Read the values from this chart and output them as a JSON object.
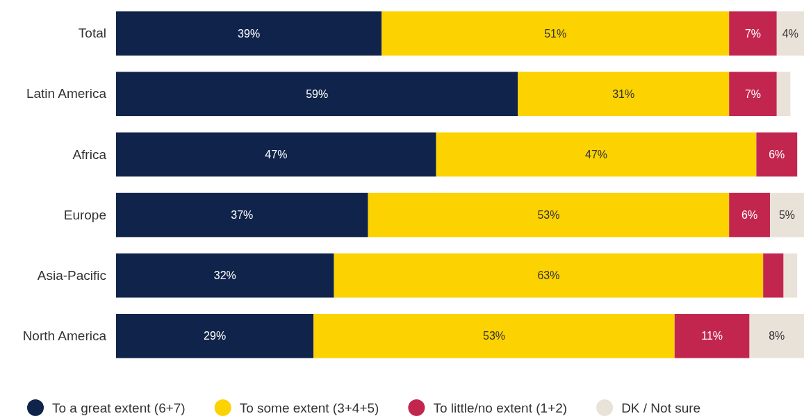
{
  "chart_data": {
    "type": "bar",
    "orientation": "horizontal",
    "stacked": true,
    "categories": [
      "Total",
      "Latin America",
      "Africa",
      "Europe",
      "Asia-Pacific",
      "North America"
    ],
    "xlim": [
      0,
      101
    ],
    "tick_labels": "y",
    "legend": "bottom",
    "series": [
      {
        "name": "To a great extent (6+7)",
        "color": "#10234a",
        "values": [
          39,
          59,
          47,
          37,
          32,
          29
        ],
        "value_labels": [
          "39%",
          "59%",
          "47%",
          "37%",
          "32%",
          "29%"
        ]
      },
      {
        "name": "To some extent (3+4+5)",
        "color": "#fcd200",
        "values": [
          51,
          31,
          47,
          53,
          63,
          53
        ],
        "value_labels": [
          "51%",
          "31%",
          "47%",
          "53%",
          "63%",
          "53%"
        ]
      },
      {
        "name": "To little/no extent (1+2)",
        "color": "#c2264f",
        "values": [
          7,
          7,
          6,
          6,
          3,
          11
        ],
        "value_labels": [
          "7%",
          "7%",
          "6%",
          "6%",
          null,
          "11%"
        ]
      },
      {
        "name": "DK / Not sure",
        "color": "#e9e2d9",
        "values": [
          4,
          2,
          0,
          5,
          2,
          8
        ],
        "value_labels": [
          "4%",
          null,
          null,
          "5%",
          null,
          "8%"
        ]
      }
    ]
  }
}
